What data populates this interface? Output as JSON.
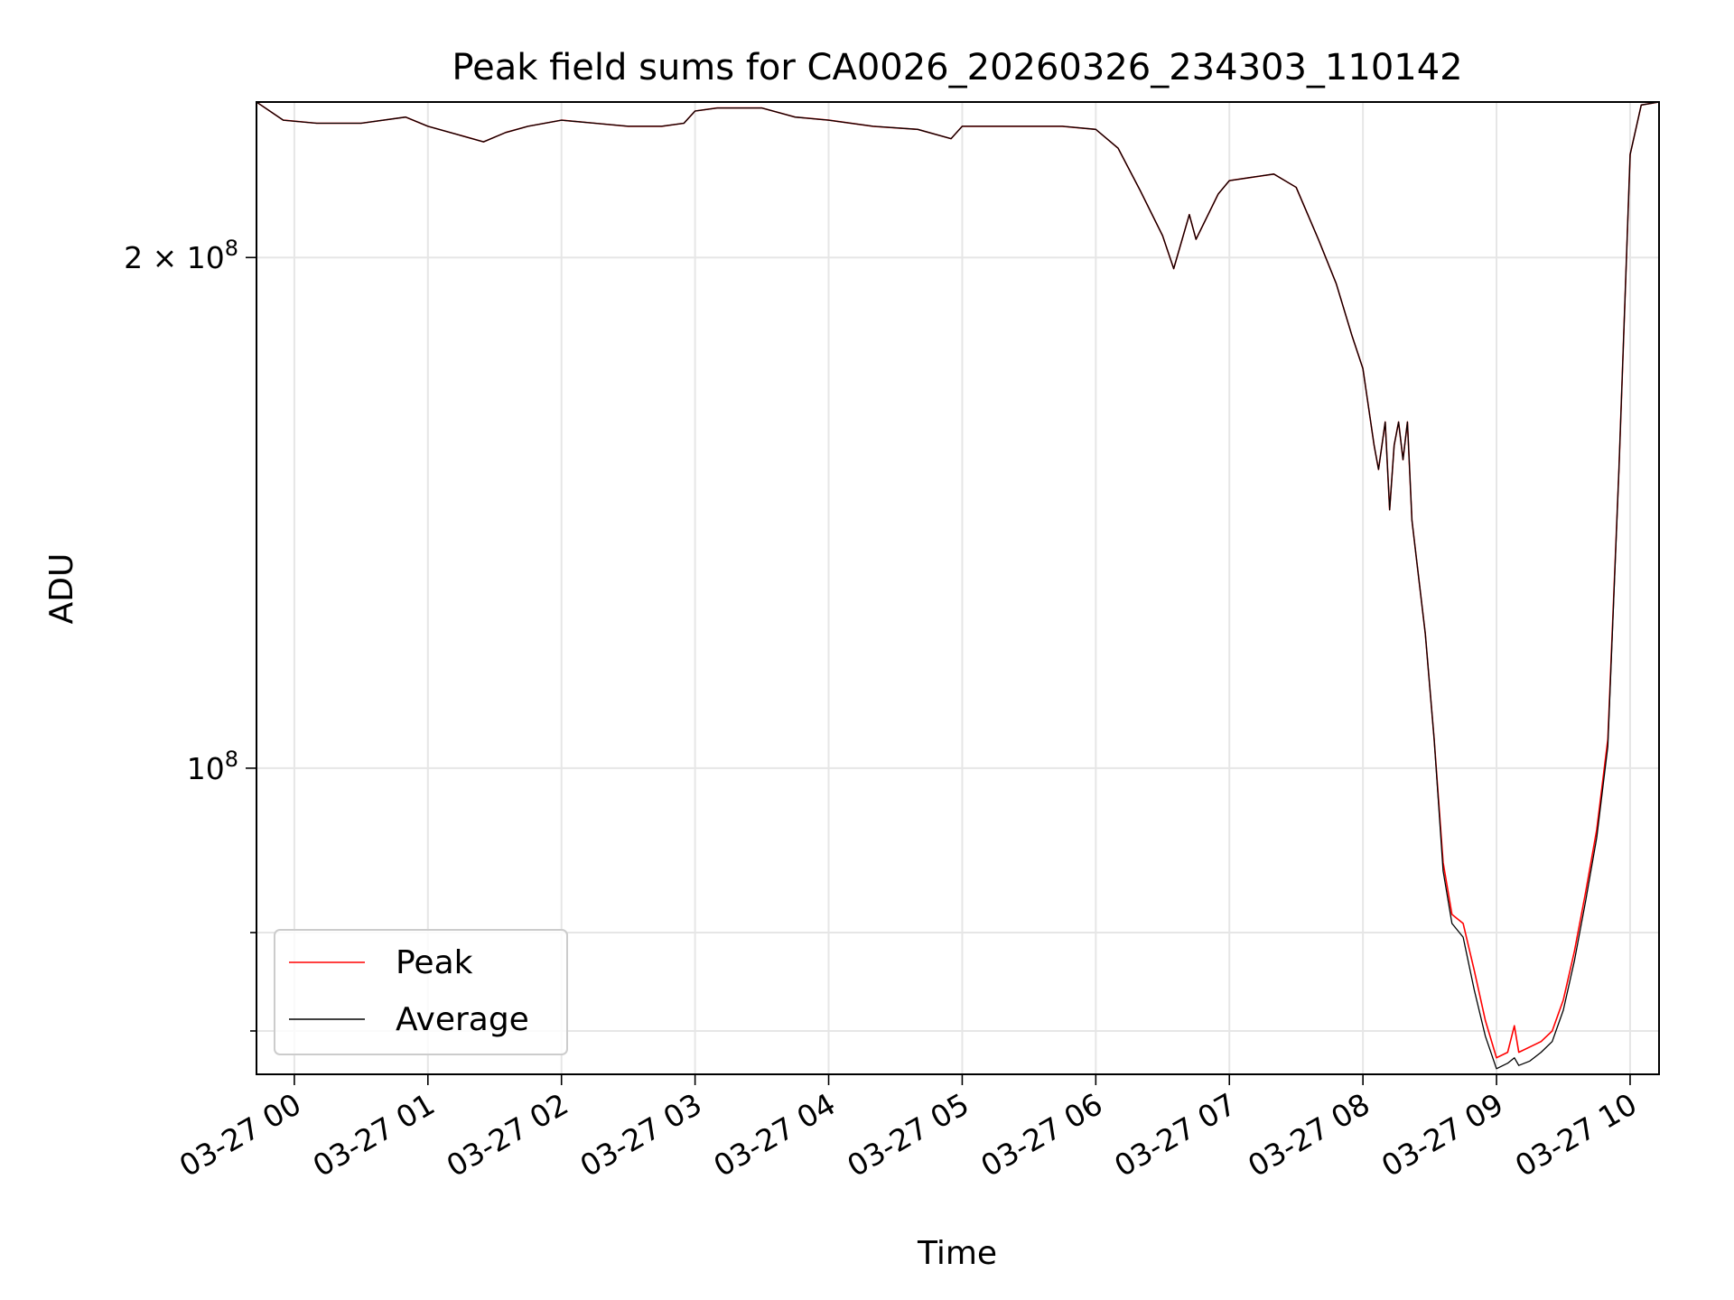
{
  "chart_data": {
    "type": "line",
    "title": "Peak field sums for CA0026_20260326_234303_110142",
    "xlabel": "Time",
    "ylabel": "ADU",
    "yscale": "log",
    "xlim": [
      "2026-03-26T23:43",
      "2026-03-27T10:13"
    ],
    "ylim": [
      66000000,
      247000000
    ],
    "grid": true,
    "legend_position": "lower-left",
    "x_ticks": [
      "2026-03-27T00:00",
      "2026-03-27T01:00",
      "2026-03-27T02:00",
      "2026-03-27T03:00",
      "2026-03-27T04:00",
      "2026-03-27T05:00",
      "2026-03-27T06:00",
      "2026-03-27T07:00",
      "2026-03-27T08:00",
      "2026-03-27T09:00",
      "2026-03-27T10:00"
    ],
    "x_tick_labels": [
      "03-27 00",
      "03-27 01",
      "03-27 02",
      "03-27 03",
      "03-27 04",
      "03-27 05",
      "03-27 06",
      "03-27 07",
      "03-27 08",
      "03-27 09",
      "03-27 10"
    ],
    "y_ticks_major": [
      100000000,
      200000000
    ],
    "y_tick_labels": [
      "10^8",
      "2×10^8"
    ],
    "y_ticks_minor": [
      70000000,
      80000000
    ],
    "series": [
      {
        "name": "Peak",
        "color": "#ff0000",
        "x": [
          "2026-03-26T23:43",
          "2026-03-26T23:55",
          "2026-03-27T00:10",
          "2026-03-27T00:30",
          "2026-03-27T00:50",
          "2026-03-27T01:00",
          "2026-03-27T01:15",
          "2026-03-27T01:25",
          "2026-03-27T01:35",
          "2026-03-27T01:45",
          "2026-03-27T02:00",
          "2026-03-27T02:15",
          "2026-03-27T02:30",
          "2026-03-27T02:45",
          "2026-03-27T02:55",
          "2026-03-27T03:00",
          "2026-03-27T03:10",
          "2026-03-27T03:30",
          "2026-03-27T03:45",
          "2026-03-27T04:00",
          "2026-03-27T04:20",
          "2026-03-27T04:40",
          "2026-03-27T04:55",
          "2026-03-27T05:00",
          "2026-03-27T05:15",
          "2026-03-27T05:30",
          "2026-03-27T05:45",
          "2026-03-27T06:00",
          "2026-03-27T06:10",
          "2026-03-27T06:20",
          "2026-03-27T06:30",
          "2026-03-27T06:35",
          "2026-03-27T06:42",
          "2026-03-27T06:45",
          "2026-03-27T06:55",
          "2026-03-27T07:00",
          "2026-03-27T07:10",
          "2026-03-27T07:20",
          "2026-03-27T07:30",
          "2026-03-27T07:40",
          "2026-03-27T07:48",
          "2026-03-27T07:55",
          "2026-03-27T08:00",
          "2026-03-27T08:05",
          "2026-03-27T08:07",
          "2026-03-27T08:10",
          "2026-03-27T08:12",
          "2026-03-27T08:14",
          "2026-03-27T08:16",
          "2026-03-27T08:18",
          "2026-03-27T08:20",
          "2026-03-27T08:22",
          "2026-03-27T08:24",
          "2026-03-27T08:28",
          "2026-03-27T08:32",
          "2026-03-27T08:36",
          "2026-03-27T08:40",
          "2026-03-27T08:45",
          "2026-03-27T08:50",
          "2026-03-27T08:55",
          "2026-03-27T09:00",
          "2026-03-27T09:05",
          "2026-03-27T09:08",
          "2026-03-27T09:10",
          "2026-03-27T09:15",
          "2026-03-27T09:20",
          "2026-03-27T09:25",
          "2026-03-27T09:30",
          "2026-03-27T09:35",
          "2026-03-27T09:40",
          "2026-03-27T09:45",
          "2026-03-27T09:50",
          "2026-03-27T09:55",
          "2026-03-27T10:00",
          "2026-03-27T10:05",
          "2026-03-27T10:13"
        ],
        "values": [
          247000000,
          241000000,
          240000000,
          240000000,
          242000000,
          239000000,
          236000000,
          234000000,
          237000000,
          239000000,
          241000000,
          240000000,
          239000000,
          239000000,
          240000000,
          244000000,
          245000000,
          245000000,
          242000000,
          241000000,
          239000000,
          238000000,
          235000000,
          239000000,
          239000000,
          239000000,
          239000000,
          238000000,
          232000000,
          219000000,
          206000000,
          197000000,
          212000000,
          205000000,
          218000000,
          222000000,
          223000000,
          224000000,
          220000000,
          205000000,
          193000000,
          180000000,
          172000000,
          155000000,
          150000000,
          160000000,
          142000000,
          155000000,
          160000000,
          152000000,
          160000000,
          140000000,
          133000000,
          120000000,
          104000000,
          88000000,
          82000000,
          81000000,
          76000000,
          71000000,
          67500000,
          68000000,
          70500000,
          68000000,
          68500000,
          69000000,
          70000000,
          73000000,
          78000000,
          84500000,
          92000000,
          104000000,
          150000000,
          230000000,
          246000000,
          247000000
        ]
      },
      {
        "name": "Average",
        "color": "#000000",
        "x": [
          "2026-03-26T23:43",
          "2026-03-26T23:55",
          "2026-03-27T00:10",
          "2026-03-27T00:30",
          "2026-03-27T00:50",
          "2026-03-27T01:00",
          "2026-03-27T01:15",
          "2026-03-27T01:25",
          "2026-03-27T01:35",
          "2026-03-27T01:45",
          "2026-03-27T02:00",
          "2026-03-27T02:15",
          "2026-03-27T02:30",
          "2026-03-27T02:45",
          "2026-03-27T02:55",
          "2026-03-27T03:00",
          "2026-03-27T03:10",
          "2026-03-27T03:30",
          "2026-03-27T03:45",
          "2026-03-27T04:00",
          "2026-03-27T04:20",
          "2026-03-27T04:40",
          "2026-03-27T04:55",
          "2026-03-27T05:00",
          "2026-03-27T05:15",
          "2026-03-27T05:30",
          "2026-03-27T05:45",
          "2026-03-27T06:00",
          "2026-03-27T06:10",
          "2026-03-27T06:20",
          "2026-03-27T06:30",
          "2026-03-27T06:35",
          "2026-03-27T06:42",
          "2026-03-27T06:45",
          "2026-03-27T06:55",
          "2026-03-27T07:00",
          "2026-03-27T07:10",
          "2026-03-27T07:20",
          "2026-03-27T07:30",
          "2026-03-27T07:40",
          "2026-03-27T07:48",
          "2026-03-27T07:55",
          "2026-03-27T08:00",
          "2026-03-27T08:05",
          "2026-03-27T08:07",
          "2026-03-27T08:10",
          "2026-03-27T08:12",
          "2026-03-27T08:14",
          "2026-03-27T08:16",
          "2026-03-27T08:18",
          "2026-03-27T08:20",
          "2026-03-27T08:22",
          "2026-03-27T08:24",
          "2026-03-27T08:28",
          "2026-03-27T08:32",
          "2026-03-27T08:36",
          "2026-03-27T08:40",
          "2026-03-27T08:45",
          "2026-03-27T08:50",
          "2026-03-27T08:55",
          "2026-03-27T09:00",
          "2026-03-27T09:05",
          "2026-03-27T09:08",
          "2026-03-27T09:10",
          "2026-03-27T09:15",
          "2026-03-27T09:20",
          "2026-03-27T09:25",
          "2026-03-27T09:30",
          "2026-03-27T09:35",
          "2026-03-27T09:40",
          "2026-03-27T09:45",
          "2026-03-27T09:50",
          "2026-03-27T09:55",
          "2026-03-27T10:00",
          "2026-03-27T10:05",
          "2026-03-27T10:13"
        ],
        "values": [
          247000000,
          241000000,
          240000000,
          240000000,
          242000000,
          239000000,
          236000000,
          234000000,
          237000000,
          239000000,
          241000000,
          240000000,
          239000000,
          239000000,
          240000000,
          244000000,
          245000000,
          245000000,
          242000000,
          241000000,
          239000000,
          238000000,
          235000000,
          239000000,
          239000000,
          239000000,
          239000000,
          238000000,
          232000000,
          219000000,
          206000000,
          197000000,
          212000000,
          205000000,
          218000000,
          222000000,
          223000000,
          224000000,
          220000000,
          205000000,
          193000000,
          180000000,
          172000000,
          155000000,
          150000000,
          160000000,
          142000000,
          155000000,
          160000000,
          152000000,
          160000000,
          140000000,
          133000000,
          120000000,
          104000000,
          87000000,
          81000000,
          79500000,
          74000000,
          69500000,
          66500000,
          67000000,
          67500000,
          66800000,
          67200000,
          68000000,
          69000000,
          72000000,
          77000000,
          83500000,
          91000000,
          103000000,
          150000000,
          230000000,
          246000000,
          247000000
        ]
      }
    ]
  }
}
